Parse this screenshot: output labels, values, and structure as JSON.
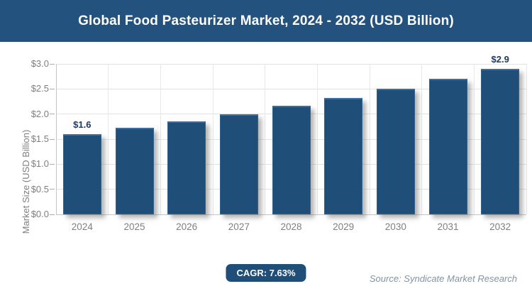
{
  "header": {
    "title": "Global Food Pasteurizer Market, 2024 - 2032 (USD Billion)"
  },
  "chart_data": {
    "type": "bar",
    "title": "Global Food Pasteurizer Market, 2024 - 2032 (USD Billion)",
    "categories": [
      "2024",
      "2025",
      "2026",
      "2027",
      "2028",
      "2029",
      "2030",
      "2031",
      "2032"
    ],
    "values": [
      1.6,
      1.73,
      1.86,
      2.0,
      2.16,
      2.32,
      2.5,
      2.7,
      2.9
    ],
    "bar_labels": [
      "$1.6",
      "",
      "",
      "",
      "",
      "",
      "",
      "",
      "$2.9"
    ],
    "xlabel": "",
    "ylabel": "Market Size (USD Billion)",
    "ylim": [
      0,
      3.0
    ],
    "ytick_step": 0.5,
    "ytick_labels": [
      "$0.0",
      "$0.5",
      "$1.0",
      "$1.5",
      "$2.0",
      "$2.5",
      "$3.0"
    ],
    "grid": true,
    "legend": false,
    "bar_color": "#1F4E79"
  },
  "footer": {
    "cagr_label": "CAGR: 7.63%",
    "source": "Source: Syndicate Market Research"
  },
  "colors": {
    "header_bg": "#24527E",
    "bar_fill": "#1F4E79",
    "bar_edge_highlight": "#3E6F9E",
    "badge_bg": "#1F4E79",
    "grid_line": "#E2E2E2",
    "axis_line": "#C6C6C6",
    "tick_text": "#7F7F7F",
    "value_label_text": "#1F3864",
    "source_text": "#8494A0",
    "title_text": "#FFFFFF"
  }
}
